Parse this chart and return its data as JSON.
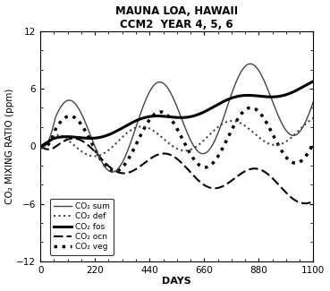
{
  "title_line1": "MAUNA LOA, HAWAII",
  "title_line2": "CCM2  YEAR 4, 5, 6",
  "xlabel": "DAYS",
  "ylabel": "CO₂ MIXING RATIO (ppm)",
  "xlim": [
    0,
    1100
  ],
  "ylim": [
    -12,
    12
  ],
  "xticks": [
    0,
    220,
    440,
    660,
    880,
    1100
  ],
  "yticks": [
    -12,
    -6,
    0,
    6,
    12
  ],
  "legend_entries": [
    {
      "label": "CO₂ sum",
      "linestyle": "solid",
      "linewidth": 1.0,
      "color": "#444444"
    },
    {
      "label": "CO₂ def",
      "linestyle": "dotted",
      "linewidth": 1.5,
      "color": "#444444"
    },
    {
      "label": "CO₂ fos",
      "linestyle": "solid",
      "linewidth": 2.2,
      "color": "#000000"
    },
    {
      "label": "CO₂ ocn",
      "linestyle": "dashed",
      "linewidth": 1.5,
      "color": "#000000"
    },
    {
      "label": "CO₂ veg",
      "linestyle": "dotted",
      "linewidth": 2.5,
      "color": "#000000"
    }
  ],
  "background_color": "#ffffff"
}
